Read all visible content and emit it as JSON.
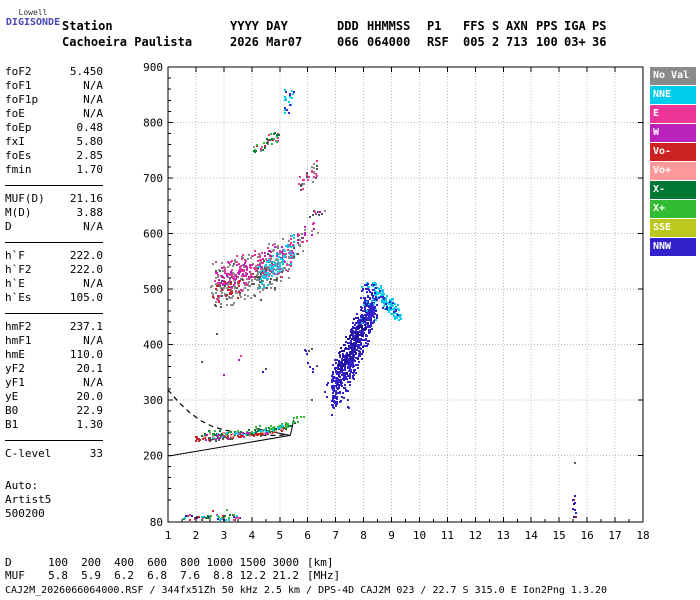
{
  "header": {
    "logo_top": "Lowell",
    "logo_main": "DIGISONDE",
    "logo_color": "#4646b4",
    "station_label": "Station",
    "station_name": "Cachoeira Paulista",
    "columns": [
      {
        "label": "YYYY DAY",
        "value": "2026 Mar07"
      },
      {
        "label": "DDD",
        "value": "066"
      },
      {
        "label": "HHMMSS",
        "value": "064000"
      },
      {
        "label": "P1",
        "value": "RSF"
      },
      {
        "label": "FFS",
        "value": "005"
      },
      {
        "label": "S",
        "value": "2"
      },
      {
        "label": "AXN",
        "value": "713"
      },
      {
        "label": "PPS",
        "value": "100"
      },
      {
        "label": "IGA",
        "value": "03+"
      },
      {
        "label": "PS",
        "value": "36"
      }
    ]
  },
  "params": {
    "groups": [
      {
        "rows": [
          [
            "foF2",
            "5.450"
          ],
          [
            "foF1",
            "N/A"
          ],
          [
            "foF1p",
            "N/A"
          ],
          [
            "foE",
            "N/A"
          ],
          [
            "foEp",
            "0.48"
          ],
          [
            "fxI",
            "5.80"
          ],
          [
            "foEs",
            "2.85"
          ],
          [
            "fmin",
            "1.70"
          ]
        ]
      },
      {
        "rows": [
          [
            "MUF(D)",
            "21.16"
          ],
          [
            "M(D)",
            "3.88"
          ],
          [
            "D",
            "N/A"
          ]
        ]
      },
      {
        "rows": [
          [
            "h`F",
            "222.0"
          ],
          [
            "h`F2",
            "222.0"
          ],
          [
            "h`E",
            "N/A"
          ],
          [
            "h`Es",
            "105.0"
          ]
        ]
      },
      {
        "rows": [
          [
            "hmF2",
            "237.1"
          ],
          [
            "hmF1",
            "N/A"
          ],
          [
            "hmE",
            "110.0"
          ],
          [
            "yF2",
            "20.1"
          ],
          [
            "yF1",
            "N/A"
          ],
          [
            "yE",
            "20.0"
          ],
          [
            "B0",
            "22.9"
          ],
          [
            "B1",
            "1.30"
          ]
        ]
      },
      {
        "rows": [
          [
            "C-level",
            "33"
          ]
        ]
      }
    ],
    "footer": [
      "Auto:",
      "Artist5",
      "500200"
    ]
  },
  "legend": {
    "items": [
      {
        "label": "No Val",
        "color": "#8a8a8a"
      },
      {
        "label": "NNE",
        "color": "#00ccee"
      },
      {
        "label": "E",
        "color": "#ee3399"
      },
      {
        "label": "W",
        "color": "#bb22bb"
      },
      {
        "label": "Vo-",
        "color": "#cc2222"
      },
      {
        "label": "Vo+",
        "color": "#ff9999"
      },
      {
        "label": "X-",
        "color": "#007733"
      },
      {
        "label": "X+",
        "color": "#33bb33"
      },
      {
        "label": "SSE",
        "color": "#bcc81e"
      },
      {
        "label": "NNW",
        "color": "#3322cc"
      }
    ]
  },
  "bottom": {
    "d_row": {
      "label": "D",
      "values": [
        "100",
        "200",
        "400",
        "600",
        "800",
        "1000",
        "1500",
        "3000"
      ],
      "unit": "[km]"
    },
    "muf_row": {
      "label": "MUF",
      "values": [
        "5.8",
        "5.9",
        "6.2",
        "6.8",
        "7.6",
        "8.8",
        "12.2",
        "21.2"
      ],
      "unit": "[MHz]"
    },
    "status": "CAJ2M_2026066064000.RSF / 344fx51Zh 50 kHz 2.5 km / DPS-4D CAJ2M 023 / 22.7 S 315.0 E Ion2Png 1.3.20"
  },
  "chart_data": {
    "type": "scatter",
    "title": "",
    "xlim": [
      1,
      18
    ],
    "ylim": [
      80,
      900
    ],
    "x_ticks": [
      1,
      2,
      3,
      4,
      5,
      6,
      7,
      8,
      9,
      10,
      11,
      12,
      13,
      14,
      15,
      16,
      17,
      18
    ],
    "y_ticks": [
      80,
      200,
      300,
      400,
      500,
      600,
      700,
      800,
      900
    ],
    "grid": true,
    "clusters": [
      {
        "name": "f-trace-dark",
        "mode": "trace",
        "n": 40,
        "size": 2,
        "jy": 7,
        "color": "#555555",
        "pts": [
          [
            2.05,
            228
          ],
          [
            3.0,
            232
          ],
          [
            4.0,
            237
          ],
          [
            4.8,
            242
          ],
          [
            5.3,
            249
          ]
        ]
      },
      {
        "name": "f-trace-red",
        "mode": "trace",
        "n": 60,
        "size": 2,
        "jy": 5,
        "color": "#cc2222",
        "pts": [
          [
            1.95,
            229
          ],
          [
            2.8,
            231
          ],
          [
            3.5,
            234
          ],
          [
            4.2,
            238
          ],
          [
            4.8,
            242
          ],
          [
            5.25,
            250
          ]
        ]
      },
      {
        "name": "f-trace-salmon",
        "mode": "trace",
        "n": 28,
        "size": 2,
        "jy": 6,
        "color": "#ff9999",
        "pts": [
          [
            2.2,
            233
          ],
          [
            3.0,
            236
          ],
          [
            3.8,
            239
          ],
          [
            4.5,
            243
          ],
          [
            5.1,
            249
          ]
        ]
      },
      {
        "name": "f-trace-darkgreen",
        "mode": "trace",
        "n": 45,
        "size": 2,
        "jy": 7,
        "color": "#007733",
        "pts": [
          [
            2.2,
            236
          ],
          [
            3.0,
            238
          ],
          [
            3.8,
            241
          ],
          [
            4.6,
            245
          ],
          [
            5.2,
            252
          ],
          [
            5.6,
            260
          ]
        ]
      },
      {
        "name": "f-trace-green",
        "mode": "trace",
        "n": 40,
        "size": 2,
        "jy": 8,
        "color": "#33bb33",
        "pts": [
          [
            2.3,
            240
          ],
          [
            3.2,
            242
          ],
          [
            4.0,
            245
          ],
          [
            4.8,
            250
          ],
          [
            5.4,
            258
          ],
          [
            5.9,
            272
          ]
        ]
      },
      {
        "name": "f-trace-cyan",
        "mode": "trace",
        "n": 20,
        "size": 2,
        "jy": 6,
        "color": "#00ccee",
        "pts": [
          [
            2.5,
            234
          ],
          [
            3.3,
            238
          ],
          [
            4.1,
            241
          ],
          [
            4.8,
            246
          ],
          [
            5.15,
            251
          ]
        ]
      },
      {
        "name": "f-trace-magenta",
        "mode": "trace",
        "n": 15,
        "size": 2,
        "jy": 6,
        "color": "#bb22bb",
        "pts": [
          [
            2.3,
            231
          ],
          [
            3.1,
            235
          ],
          [
            3.9,
            239
          ],
          [
            4.6,
            243
          ]
        ]
      },
      {
        "name": "es-noise",
        "mode": "uniform",
        "n": 50,
        "size": 2,
        "x": [
          1.55,
          3.6
        ],
        "y": [
          83,
          93
        ],
        "colors": [
          "#33bb33",
          "#cc2222",
          "#00ccee",
          "#007733",
          "#555555",
          "#ee3399",
          "#3322cc"
        ]
      },
      {
        "name": "hop2-gray",
        "mode": "band",
        "n": 240,
        "size": 2,
        "x": [
          2.55,
          5.4
        ],
        "y0": 500,
        "slope": 18,
        "spread": 48,
        "color": "#8a8a8a"
      },
      {
        "name": "hop2-dark",
        "mode": "band",
        "n": 70,
        "size": 2,
        "x": [
          2.6,
          5.1
        ],
        "y0": 495,
        "slope": 16,
        "spread": 50,
        "color": "#555555"
      },
      {
        "name": "hop2-pink",
        "mode": "band",
        "n": 150,
        "size": 2,
        "x": [
          2.6,
          5.45
        ],
        "y0": 508,
        "slope": 20,
        "spread": 40,
        "color": "#ee3399"
      },
      {
        "name": "hop2-purple",
        "mode": "band",
        "n": 55,
        "size": 2,
        "x": [
          2.7,
          5.3
        ],
        "y0": 515,
        "slope": 16,
        "spread": 34,
        "color": "#bb22bb"
      },
      {
        "name": "hop2-cyan",
        "mode": "band",
        "n": 85,
        "size": 2,
        "x": [
          4.25,
          5.55
        ],
        "y0": 515,
        "slope": 48,
        "spread": 28,
        "color": "#00ccee"
      },
      {
        "name": "hop2-red",
        "mode": "band",
        "n": 25,
        "size": 2,
        "x": [
          2.6,
          3.6
        ],
        "y0": 492,
        "slope": 5,
        "spread": 22,
        "color": "#cc2222"
      },
      {
        "name": "hop2-trail",
        "mode": "band",
        "n": 45,
        "size": 2,
        "x": [
          5.45,
          6.65
        ],
        "y0": 568,
        "slope": 62,
        "spread": 30,
        "colors": [
          "#8a8a8a",
          "#ee3399",
          "#bb22bb",
          "#555555"
        ]
      },
      {
        "name": "hop2-upper",
        "mode": "band",
        "n": 32,
        "size": 2,
        "x": [
          5.7,
          6.35
        ],
        "y0": 688,
        "slope": 45,
        "spread": 18,
        "colors": [
          "#8a8a8a",
          "#ee3399",
          "#555555"
        ]
      },
      {
        "name": "hop3",
        "mode": "band",
        "n": 42,
        "size": 2,
        "x": [
          4.05,
          5.05
        ],
        "y0": 747,
        "slope": 32,
        "spread": 13,
        "colors": [
          "#33bb33",
          "#007733",
          "#ee3399",
          "#cc2222",
          "#8a8a8a"
        ]
      },
      {
        "name": "hop3-cyan",
        "mode": "uniform",
        "n": 26,
        "size": 2,
        "x": [
          5.15,
          5.5
        ],
        "y": [
          816,
          858
        ],
        "colors": [
          "#00ccee",
          "#00ccee",
          "#00ccee",
          "#3322cc"
        ]
      },
      {
        "name": "spread-f-blue-left",
        "mode": "band",
        "n": 240,
        "size": 2,
        "x": [
          6.85,
          7.65
        ],
        "y0": 318,
        "slope": 85,
        "spread": 52,
        "color": "#3322cc"
      },
      {
        "name": "spread-f-blue-right",
        "mode": "band",
        "n": 300,
        "size": 2,
        "x": [
          7.5,
          8.4
        ],
        "y0": 372,
        "slope": 115,
        "spread": 58,
        "color": "#3322cc"
      },
      {
        "name": "spread-f-navy",
        "mode": "band",
        "n": 120,
        "size": 2,
        "x": [
          7.1,
          8.1
        ],
        "y0": 350,
        "slope": 95,
        "spread": 45,
        "color": "#221199"
      },
      {
        "name": "spread-f-bottom",
        "mode": "uniform",
        "n": 30,
        "size": 2,
        "x": [
          6.6,
          7.5
        ],
        "y": [
          285,
          332
        ],
        "color": "#3322cc"
      },
      {
        "name": "spread-f-top-cyan",
        "mode": "uniform",
        "n": 80,
        "size": 2,
        "x": [
          7.9,
          8.5
        ],
        "y": [
          438,
          512
        ],
        "colors": [
          "#3322cc",
          "#00ccee",
          "#3322cc"
        ]
      },
      {
        "name": "cyan-arc",
        "mode": "band",
        "n": 110,
        "size": 2,
        "x": [
          8.4,
          9.4
        ],
        "y0": 498,
        "slope": -52,
        "spread": 20,
        "color": "#00ccee"
      },
      {
        "name": "cyan-arc-blue",
        "mode": "band",
        "n": 22,
        "size": 2,
        "x": [
          8.45,
          9.3
        ],
        "y0": 492,
        "slope": -48,
        "spread": 16,
        "color": "#3322cc"
      },
      {
        "name": "mid-sparse",
        "mode": "uniform",
        "n": 10,
        "size": 2,
        "x": [
          5.85,
          6.35
        ],
        "y": [
          334,
          392
        ],
        "colors": [
          "#3322cc",
          "#555555"
        ]
      },
      {
        "name": "right-isolated",
        "mode": "uniform",
        "n": 11,
        "size": 2,
        "x": [
          15.46,
          15.62
        ],
        "y": [
          84,
          128
        ],
        "colors": [
          "#3322cc",
          "#221199",
          "#cc2222",
          "#3322cc"
        ]
      }
    ],
    "stray_points": [
      [
        2.2,
        368,
        "#555555"
      ],
      [
        2.75,
        418,
        "#555555"
      ],
      [
        3.0,
        345,
        "#bb22bb"
      ],
      [
        3.55,
        372,
        "#bb22bb"
      ],
      [
        3.62,
        380,
        "#ee3399"
      ],
      [
        4.4,
        350,
        "#3322cc"
      ],
      [
        4.5,
        356,
        "#555555"
      ],
      [
        15.55,
        186,
        "#555555"
      ],
      [
        6.15,
        300,
        "#555555"
      ],
      [
        2.6,
        100,
        "#cc2222"
      ],
      [
        3.1,
        101,
        "#33bb33"
      ]
    ],
    "curves": {
      "dashed": [
        [
          1.0,
          318
        ],
        [
          1.4,
          295
        ],
        [
          1.8,
          276
        ],
        [
          2.2,
          262
        ],
        [
          2.6,
          252
        ],
        [
          3.0,
          246
        ],
        [
          3.5,
          241
        ],
        [
          4.0,
          238
        ],
        [
          4.5,
          236
        ],
        [
          5.0,
          236
        ],
        [
          5.3,
          238
        ]
      ],
      "solid": [
        [
          [
            1.03,
            199
          ],
          [
            5.38,
            236
          ]
        ],
        [
          [
            4.15,
            248
          ],
          [
            5.38,
            236
          ]
        ],
        [
          [
            5.38,
            236
          ],
          [
            5.5,
            264
          ]
        ]
      ]
    }
  }
}
